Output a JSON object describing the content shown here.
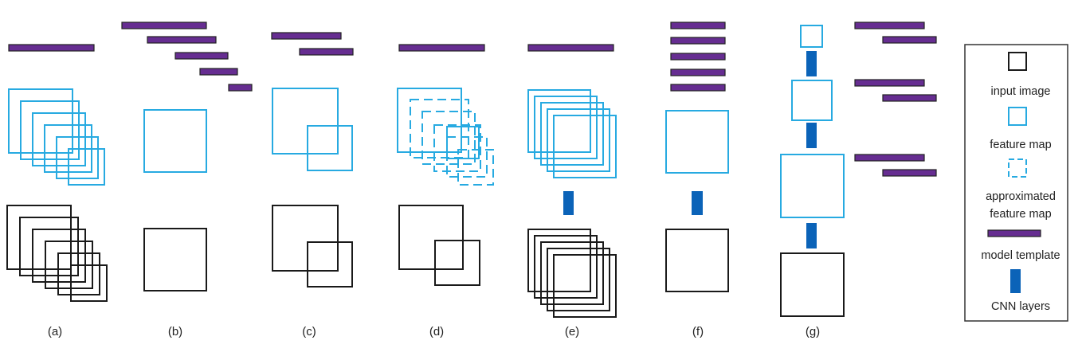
{
  "panels": [
    {
      "id": "a",
      "label": "(a)"
    },
    {
      "id": "b",
      "label": "(b)"
    },
    {
      "id": "c",
      "label": "(c)"
    },
    {
      "id": "d",
      "label": "(d)"
    },
    {
      "id": "e",
      "label": "(e)"
    },
    {
      "id": "f",
      "label": "(f)"
    },
    {
      "id": "g",
      "label": "(g)"
    }
  ],
  "legend": {
    "input_image": "input image",
    "feature_map": "feature map",
    "approximated_line1": "approximated",
    "approximated_line2": "feature map",
    "model_template": "model template",
    "cnn_layers": "CNN layers"
  },
  "colors": {
    "input_image": "#1a1a1a",
    "feature_map": "#27aae1",
    "model_template": "#662d91",
    "model_template_outline": "#222222",
    "cnn_layers": "#0b63b8"
  }
}
